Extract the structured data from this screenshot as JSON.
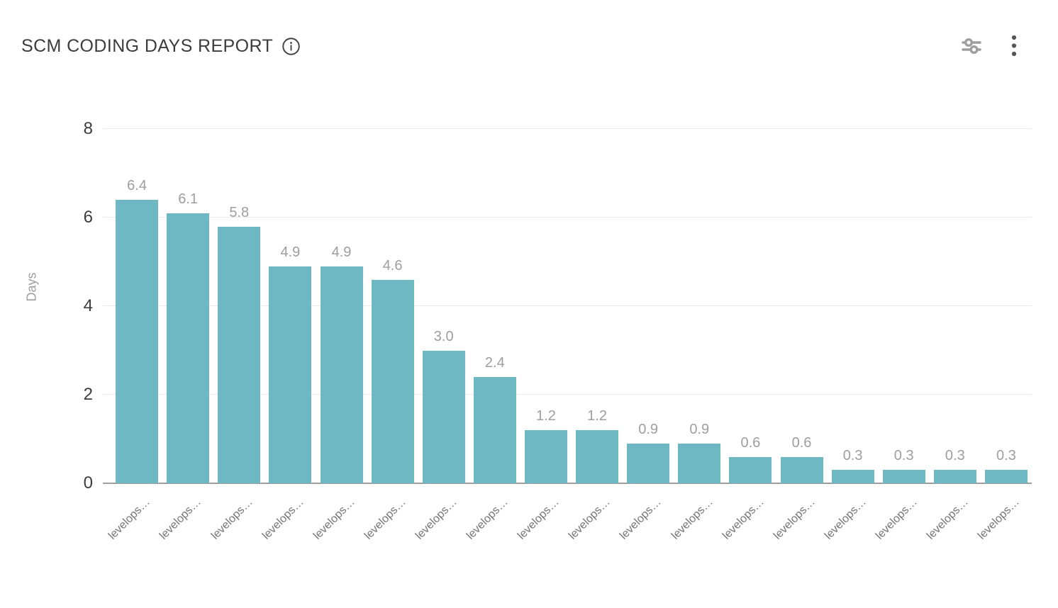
{
  "header": {
    "title": "SCM CODING DAYS REPORT",
    "info_icon": "info-icon",
    "filter_icon": "filter-sliders-icon",
    "menu_icon": "kebab-menu-icon"
  },
  "colors": {
    "bar": "#6db8c3",
    "title_text": "#3c3c3c",
    "value_label_text": "#9e9e9e",
    "axis_label_text": "#757575"
  },
  "chart_data": {
    "type": "bar",
    "title": "SCM CODING DAYS REPORT",
    "xlabel": "",
    "ylabel": "Days",
    "ylim": [
      0,
      8
    ],
    "yticks": [
      0,
      2,
      4,
      6,
      8
    ],
    "grid": true,
    "legend": false,
    "bar_color": "#6db8c3",
    "categories": [
      "levelops…",
      "levelops…",
      "levelops…",
      "levelops…",
      "levelops…",
      "levelops…",
      "levelops…",
      "levelops…",
      "levelops…",
      "levelops…",
      "levelops…",
      "levelops…",
      "levelops…",
      "levelops…",
      "levelops…",
      "levelops…",
      "levelops…",
      "levelops…"
    ],
    "values": [
      6.4,
      6.1,
      5.8,
      4.9,
      4.9,
      4.6,
      3.0,
      2.4,
      1.2,
      1.2,
      0.9,
      0.9,
      0.6,
      0.6,
      0.3,
      0.3,
      0.3,
      0.3
    ],
    "value_labels": [
      "6.4",
      "6.1",
      "5.8",
      "4.9",
      "4.9",
      "4.6",
      "3.0",
      "2.4",
      "1.2",
      "1.2",
      "0.9",
      "0.9",
      "0.6",
      "0.6",
      "0.3",
      "0.3",
      "0.3",
      "0.3"
    ]
  }
}
